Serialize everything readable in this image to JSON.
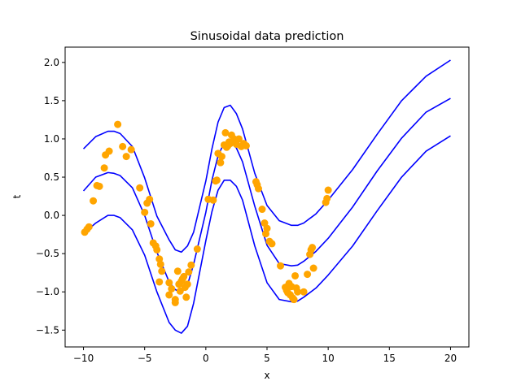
{
  "chart_data": {
    "type": "scatter",
    "title": "Sinusoidal data prediction",
    "xlabel": "x",
    "ylabel": "t",
    "xlim": [
      -11.5,
      21.5
    ],
    "ylim": [
      -1.72,
      2.2
    ],
    "grid": false,
    "x_ticks": [
      -10,
      -5,
      0,
      5,
      10,
      15,
      20
    ],
    "y_ticks": [
      -1.5,
      -1.0,
      -0.5,
      0.0,
      0.5,
      1.0,
      1.5,
      2.0
    ],
    "x_tick_labels": [
      "−10",
      "−5",
      "0",
      "5",
      "10",
      "15",
      "20"
    ],
    "y_tick_labels": [
      "−1.5",
      "−1.0",
      "−0.5",
      "0.0",
      "0.5",
      "1.0",
      "1.5",
      "2.0"
    ],
    "colors": {
      "points": "#ffa500",
      "lines": "#0000ff"
    },
    "points": [
      {
        "x": -9.9,
        "y": -0.22
      },
      {
        "x": -9.7,
        "y": -0.18
      },
      {
        "x": -9.55,
        "y": -0.15
      },
      {
        "x": -9.2,
        "y": 0.19
      },
      {
        "x": -8.9,
        "y": 0.39
      },
      {
        "x": -8.7,
        "y": 0.38
      },
      {
        "x": -8.3,
        "y": 0.62
      },
      {
        "x": -8.2,
        "y": 0.79
      },
      {
        "x": -7.9,
        "y": 0.84
      },
      {
        "x": -7.2,
        "y": 1.19
      },
      {
        "x": -6.8,
        "y": 0.9
      },
      {
        "x": -6.5,
        "y": 0.77
      },
      {
        "x": -6.1,
        "y": 0.86
      },
      {
        "x": -5.4,
        "y": 0.36
      },
      {
        "x": -5.0,
        "y": 0.04
      },
      {
        "x": -4.8,
        "y": 0.16
      },
      {
        "x": -4.6,
        "y": 0.21
      },
      {
        "x": -4.5,
        "y": -0.11
      },
      {
        "x": -4.3,
        "y": -0.36
      },
      {
        "x": -4.1,
        "y": -0.4
      },
      {
        "x": -4.0,
        "y": -0.45
      },
      {
        "x": -3.8,
        "y": -0.57
      },
      {
        "x": -3.7,
        "y": -0.64
      },
      {
        "x": -3.6,
        "y": -0.73
      },
      {
        "x": -3.8,
        "y": -0.87
      },
      {
        "x": -3.0,
        "y": -1.04
      },
      {
        "x": -3.0,
        "y": -0.88
      },
      {
        "x": -2.8,
        "y": -0.96
      },
      {
        "x": -2.5,
        "y": -1.1
      },
      {
        "x": -2.5,
        "y": -1.14
      },
      {
        "x": -2.3,
        "y": -0.73
      },
      {
        "x": -2.2,
        "y": -0.9
      },
      {
        "x": -2.1,
        "y": -0.99
      },
      {
        "x": -2.0,
        "y": -0.86
      },
      {
        "x": -1.9,
        "y": -0.83
      },
      {
        "x": -1.8,
        "y": -0.8
      },
      {
        "x": -1.7,
        "y": -0.94
      },
      {
        "x": -1.6,
        "y": -1.07
      },
      {
        "x": -1.5,
        "y": -0.9
      },
      {
        "x": -1.4,
        "y": -0.74
      },
      {
        "x": -1.2,
        "y": -0.65
      },
      {
        "x": -0.7,
        "y": -0.44
      },
      {
        "x": 0.2,
        "y": 0.21
      },
      {
        "x": 0.6,
        "y": 0.2
      },
      {
        "x": 0.8,
        "y": 0.45
      },
      {
        "x": 0.9,
        "y": 0.46
      },
      {
        "x": 1.0,
        "y": 0.81
      },
      {
        "x": 1.2,
        "y": 0.69
      },
      {
        "x": 1.3,
        "y": 0.77
      },
      {
        "x": 1.5,
        "y": 0.92
      },
      {
        "x": 1.6,
        "y": 1.08
      },
      {
        "x": 1.7,
        "y": 0.89
      },
      {
        "x": 1.8,
        "y": 0.91
      },
      {
        "x": 1.9,
        "y": 0.96
      },
      {
        "x": 2.0,
        "y": 0.94
      },
      {
        "x": 2.1,
        "y": 1.05
      },
      {
        "x": 2.3,
        "y": 1.0
      },
      {
        "x": 2.5,
        "y": 0.93
      },
      {
        "x": 2.7,
        "y": 1.0
      },
      {
        "x": 2.9,
        "y": 0.9
      },
      {
        "x": 3.1,
        "y": 0.94
      },
      {
        "x": 3.3,
        "y": 0.91
      },
      {
        "x": 4.1,
        "y": 0.44
      },
      {
        "x": 4.2,
        "y": 0.4
      },
      {
        "x": 4.3,
        "y": 0.35
      },
      {
        "x": 4.6,
        "y": 0.08
      },
      {
        "x": 4.8,
        "y": -0.1
      },
      {
        "x": 4.9,
        "y": -0.24
      },
      {
        "x": 5.0,
        "y": -0.17
      },
      {
        "x": 5.2,
        "y": -0.34
      },
      {
        "x": 5.4,
        "y": -0.37
      },
      {
        "x": 6.1,
        "y": -0.66
      },
      {
        "x": 6.5,
        "y": -0.94
      },
      {
        "x": 6.6,
        "y": -0.98
      },
      {
        "x": 6.7,
        "y": -1.01
      },
      {
        "x": 6.8,
        "y": -0.89
      },
      {
        "x": 6.9,
        "y": -1.04
      },
      {
        "x": 7.0,
        "y": -0.93
      },
      {
        "x": 7.1,
        "y": -1.08
      },
      {
        "x": 7.2,
        "y": -1.1
      },
      {
        "x": 7.3,
        "y": -0.79
      },
      {
        "x": 7.4,
        "y": -0.95
      },
      {
        "x": 7.5,
        "y": -1.0
      },
      {
        "x": 8.0,
        "y": -1.0
      },
      {
        "x": 8.3,
        "y": -0.77
      },
      {
        "x": 8.5,
        "y": -0.51
      },
      {
        "x": 8.6,
        "y": -0.45
      },
      {
        "x": 8.7,
        "y": -0.42
      },
      {
        "x": 8.8,
        "y": -0.69
      },
      {
        "x": 9.8,
        "y": 0.17
      },
      {
        "x": 9.9,
        "y": 0.22
      },
      {
        "x": 10.0,
        "y": 0.33
      }
    ],
    "series": [
      {
        "x": [
          -10,
          -9,
          -8,
          -7.5,
          -7,
          -6,
          -5,
          -4,
          -3,
          -2.5,
          -2,
          -1.5,
          -1,
          0,
          0.5,
          1,
          1.5,
          2,
          2.5,
          3,
          4,
          5,
          6,
          7,
          7.5,
          8,
          9,
          10,
          12,
          14,
          16,
          18,
          20
        ],
        "values": [
          0.87,
          1.03,
          1.1,
          1.1,
          1.07,
          0.9,
          0.49,
          -0.01,
          -0.32,
          -0.45,
          -0.48,
          -0.4,
          -0.22,
          0.45,
          0.87,
          1.22,
          1.41,
          1.44,
          1.33,
          1.13,
          0.55,
          0.13,
          -0.07,
          -0.13,
          -0.13,
          -0.1,
          0.02,
          0.2,
          0.6,
          1.06,
          1.5,
          1.82,
          2.03
        ]
      },
      {
        "x": [
          -10,
          -9,
          -8,
          -7.5,
          -7,
          -6,
          -5,
          -4,
          -3,
          -2.5,
          -2,
          -1.5,
          -1,
          0,
          0.5,
          1,
          1.5,
          2,
          2.5,
          3,
          4,
          5,
          6,
          7,
          7.5,
          8,
          9,
          10,
          12,
          14,
          16,
          18,
          20
        ],
        "values": [
          0.32,
          0.5,
          0.56,
          0.55,
          0.52,
          0.36,
          0.0,
          -0.48,
          -0.87,
          -0.97,
          -1.01,
          -0.91,
          -0.64,
          0.04,
          0.46,
          0.78,
          0.95,
          0.97,
          0.88,
          0.7,
          0.12,
          -0.39,
          -0.63,
          -0.66,
          -0.65,
          -0.6,
          -0.47,
          -0.3,
          0.11,
          0.58,
          1.01,
          1.35,
          1.53
        ]
      },
      {
        "x": [
          -10,
          -9,
          -8,
          -7.5,
          -7,
          -6,
          -5,
          -4,
          -3,
          -2.5,
          -2,
          -1.5,
          -1,
          0,
          0.5,
          1,
          1.5,
          2,
          2.5,
          3,
          4,
          5,
          6,
          7,
          7.5,
          8,
          9,
          10,
          12,
          14,
          16,
          18,
          20
        ],
        "values": [
          -0.24,
          -0.1,
          0.0,
          0.0,
          -0.03,
          -0.19,
          -0.52,
          -1.0,
          -1.4,
          -1.5,
          -1.54,
          -1.45,
          -1.15,
          -0.33,
          0.05,
          0.33,
          0.46,
          0.46,
          0.38,
          0.2,
          -0.4,
          -0.88,
          -1.1,
          -1.13,
          -1.12,
          -1.07,
          -0.95,
          -0.78,
          -0.4,
          0.06,
          0.5,
          0.84,
          1.04
        ]
      }
    ]
  }
}
